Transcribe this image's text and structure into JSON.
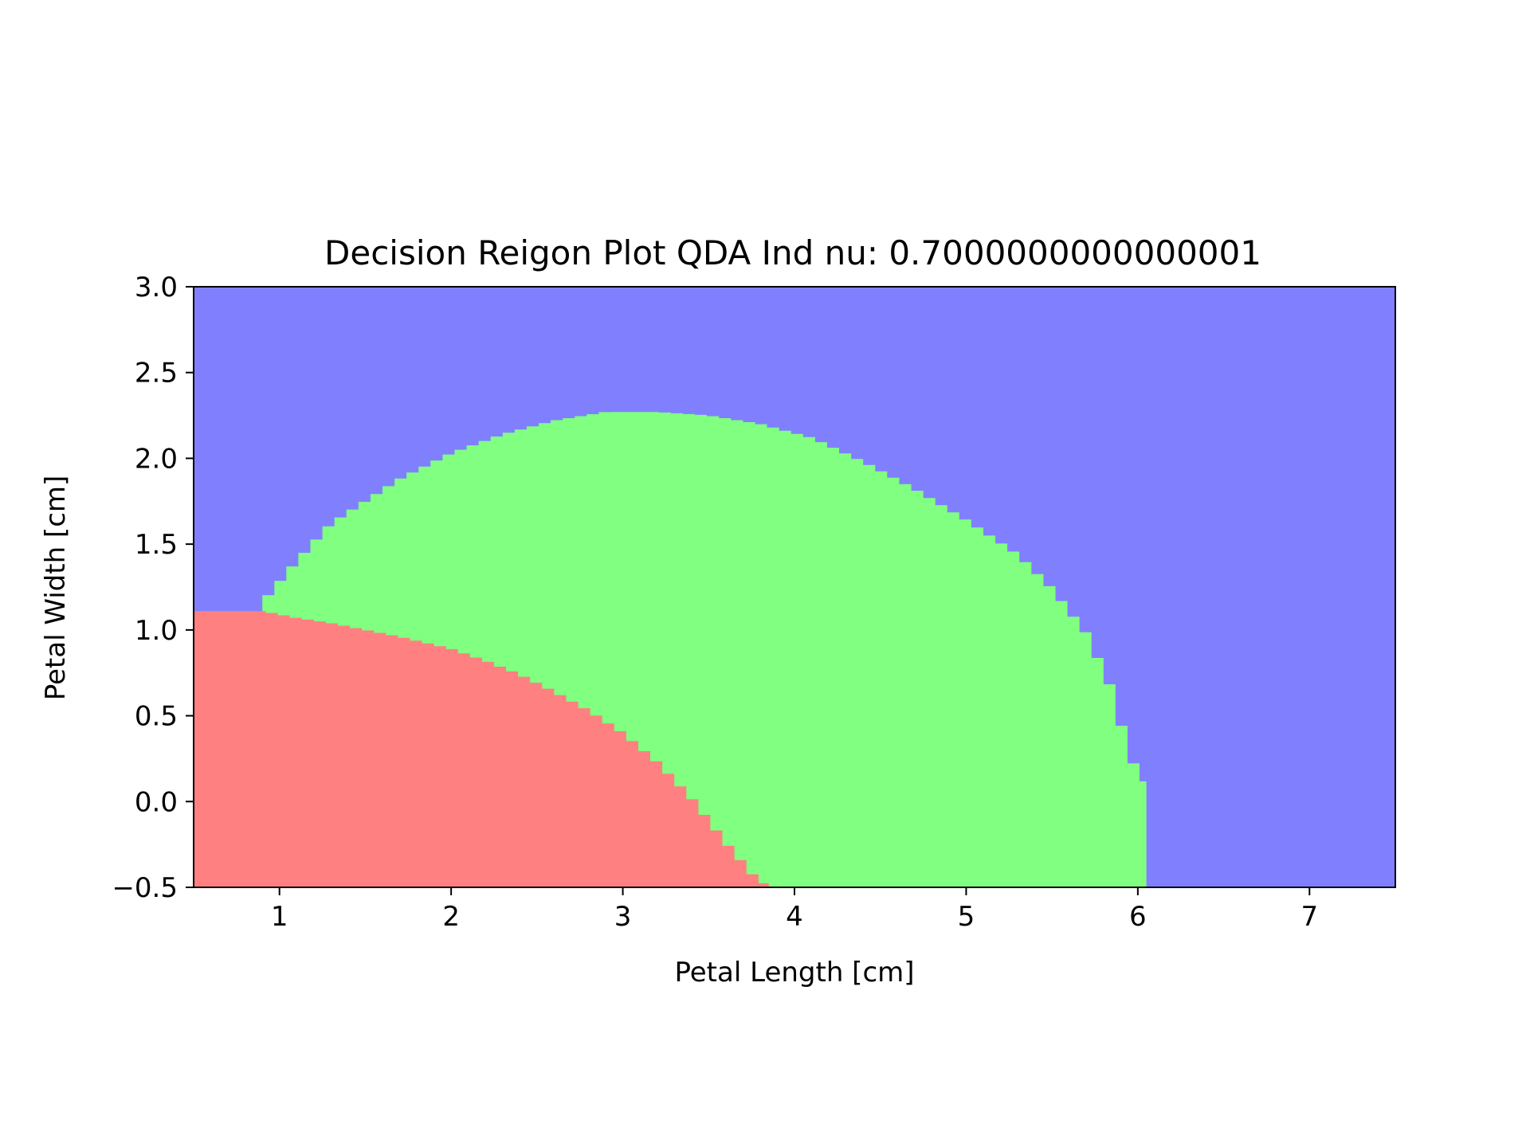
{
  "chart_data": {
    "type": "heatmap",
    "title": "Decision Reigon Plot QDA Ind nu: 0.7000000000000001",
    "xlabel": "Petal Length [cm]",
    "ylabel": "Petal Width [cm]",
    "xlim": [
      0.5,
      7.5
    ],
    "ylim": [
      -0.5,
      3.0
    ],
    "xticks": [
      1,
      2,
      3,
      4,
      5,
      6,
      7
    ],
    "xtick_labels": [
      "1",
      "2",
      "3",
      "4",
      "5",
      "6",
      "7"
    ],
    "yticks": [
      -0.5,
      0.0,
      0.5,
      1.0,
      1.5,
      2.0,
      2.5,
      3.0
    ],
    "ytick_labels": [
      "−0.5",
      "0.0",
      "0.5",
      "1.0",
      "1.5",
      "2.0",
      "2.5",
      "3.0"
    ],
    "grid": false,
    "legend": "none",
    "classes": [
      {
        "region": "red",
        "color": "#ff8080"
      },
      {
        "region": "green",
        "color": "#80ff80"
      },
      {
        "region": "blue",
        "color": "#8080ff"
      }
    ],
    "red_region_upper_boundary": {
      "x": [
        0.5,
        0.9,
        1.1,
        1.3,
        1.5,
        1.7,
        2.0,
        2.2,
        2.4,
        2.6,
        2.8,
        3.0,
        3.2,
        3.4,
        3.6,
        3.75,
        3.85
      ],
      "y": [
        1.11,
        1.11,
        1.07,
        1.04,
        1.0,
        0.96,
        0.89,
        0.82,
        0.74,
        0.64,
        0.53,
        0.4,
        0.23,
        0.02,
        -0.24,
        -0.42,
        -0.5
      ]
    },
    "green_region_upper_boundary": {
      "x": [
        0.9,
        1.0,
        1.1,
        1.3,
        1.5,
        1.7,
        2.0,
        2.3,
        2.6,
        2.9,
        3.2,
        3.5,
        3.8,
        4.1,
        4.4,
        4.7,
        5.0,
        5.3,
        5.5,
        5.7,
        5.85,
        5.95,
        6.05,
        6.05
      ],
      "y": [
        1.16,
        1.28,
        1.4,
        1.62,
        1.75,
        1.88,
        2.03,
        2.14,
        2.22,
        2.27,
        2.27,
        2.25,
        2.2,
        2.12,
        1.98,
        1.82,
        1.64,
        1.44,
        1.24,
        0.98,
        0.65,
        0.27,
        0.08,
        -0.5
      ]
    }
  }
}
